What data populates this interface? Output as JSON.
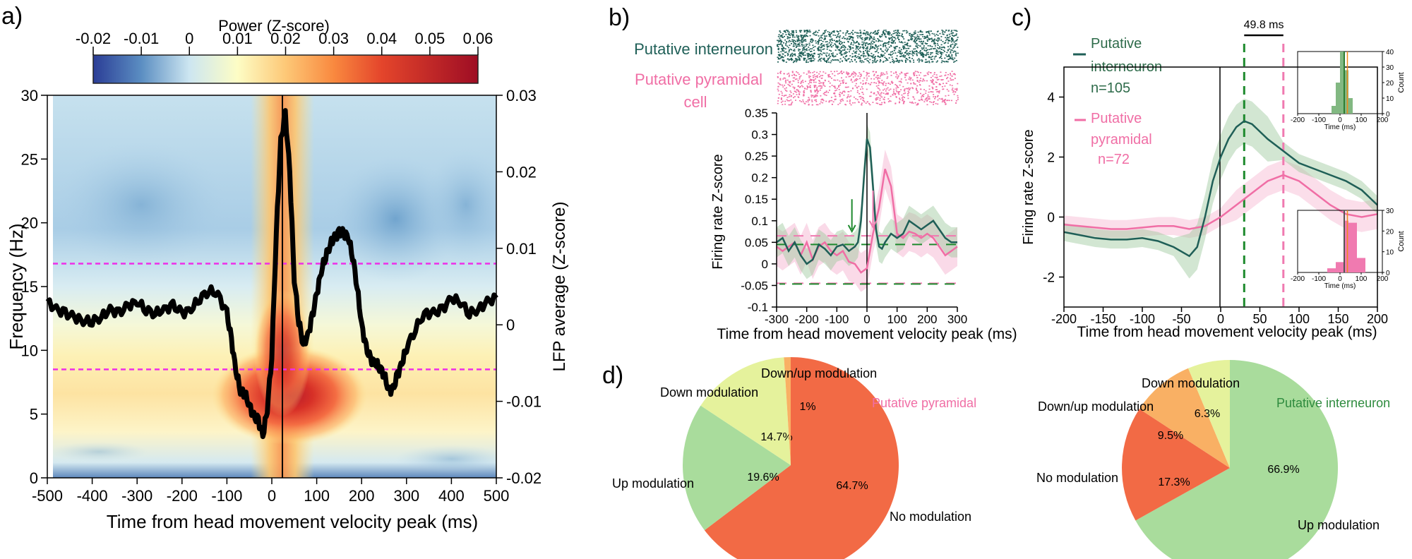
{
  "colors": {
    "interneuron": "#1f5f57",
    "pyramidal": "#f06ea5",
    "interneuron_fill": "#9cc79c",
    "pyramidal_fill": "#f7c2d8",
    "green_dash": "#1e8a2e",
    "pink_dash": "#f07ab0",
    "magenta": "#ee2ee8",
    "pie_no": "#f26a45",
    "pie_up": "#a9dc9c",
    "pie_down": "#e5f29c",
    "pie_downup": "#f9b064",
    "pie_pyr_label": "#f06ea5",
    "pie_int_label": "#2e8b3e"
  },
  "chart_data": [
    {
      "id": "a",
      "panel_label": "a)",
      "type": "heatmap",
      "title": "Power (Z-score)",
      "xlabel": "Time from head movement velocity peak (ms)",
      "ylabel": "Frequency (Hz)",
      "y2label": "LFP average (Z-score)",
      "xlim": [
        -500,
        500
      ],
      "ylim": [
        0,
        30
      ],
      "y2lim": [
        -0.02,
        0.03
      ],
      "x_ticks": [
        "-500",
        "-400",
        "-300",
        "-200",
        "-100",
        "0",
        "100",
        "200",
        "300",
        "400",
        "500"
      ],
      "y_ticks": [
        "0",
        "5",
        "10",
        "15",
        "20",
        "25",
        "30"
      ],
      "y2_ticks": [
        "-0.02",
        "-0.01",
        "0",
        "0.01",
        "0.02",
        "0.03"
      ],
      "colorbar_range": [
        -0.02,
        0.06
      ],
      "colorbar_ticks": [
        "-0.02",
        "-0.01",
        "0",
        "0.01",
        "0.02",
        "0.03",
        "0.04",
        "0.05",
        "0.06"
      ],
      "reference_lines_hz": [
        8.5,
        16.8
      ],
      "lfp_trace": {
        "x": [
          -500,
          -480,
          -460,
          -440,
          -420,
          -400,
          -380,
          -360,
          -340,
          -320,
          -300,
          -280,
          -260,
          -240,
          -220,
          -200,
          -180,
          -160,
          -140,
          -120,
          -100,
          -90,
          -80,
          -70,
          -60,
          -50,
          -40,
          -30,
          -20,
          -10,
          0,
          10,
          20,
          30,
          40,
          50,
          60,
          70,
          80,
          90,
          100,
          110,
          120,
          130,
          140,
          150,
          160,
          170,
          180,
          190,
          200,
          210,
          220,
          230,
          240,
          250,
          260,
          270,
          280,
          290,
          300,
          320,
          340,
          360,
          380,
          400,
          420,
          440,
          460,
          480,
          500
        ],
        "y": [
          0.003,
          0.002,
          0.0015,
          0.001,
          0.0005,
          0.0005,
          0.001,
          0.002,
          0.0015,
          0.0025,
          0.003,
          0.002,
          0.0015,
          0.002,
          0.0025,
          0.0015,
          0.002,
          0.0035,
          0.0045,
          0.004,
          0.0015,
          -0.002,
          -0.006,
          -0.0085,
          -0.009,
          -0.0105,
          -0.012,
          -0.0125,
          -0.0145,
          -0.011,
          -0.004,
          0.012,
          0.024,
          0.0275,
          0.02,
          0.006,
          0.0005,
          -0.0025,
          -0.0015,
          0.001,
          0.004,
          0.007,
          0.009,
          0.0105,
          0.0115,
          0.012,
          0.012,
          0.0115,
          0.009,
          0.005,
          0.0,
          -0.003,
          -0.0045,
          -0.005,
          -0.0055,
          -0.0065,
          -0.0085,
          -0.0085,
          -0.0065,
          -0.005,
          -0.003,
          -0.0005,
          0.0015,
          0.0015,
          0.002,
          0.0035,
          0.003,
          0.0015,
          0.002,
          0.003,
          0.0035
        ]
      }
    },
    {
      "id": "b",
      "panel_label": "b)",
      "type": "line",
      "raster_labels": [
        "Putative interneuron",
        "Putative pyramidal",
        "cell"
      ],
      "xlabel": "Time from head movement velocity peak (ms)",
      "ylabel": "Firing rate Z-score",
      "xlim": [
        -300,
        300
      ],
      "ylim": [
        -0.1,
        0.35
      ],
      "x_ticks": [
        "-300",
        "-200",
        "-100",
        "0",
        "100",
        "200",
        "300"
      ],
      "y_ticks": [
        "-0.1",
        "-0.05",
        "0",
        "0.05",
        "0.1",
        "0.15",
        "0.2",
        "0.25",
        "0.3",
        "0.35"
      ],
      "reference_levels": {
        "upper_pink": 0.065,
        "upper_green": 0.045,
        "lower": -0.045
      },
      "arrows_x": {
        "interneuron": -50,
        "pyramidal": 20
      },
      "series": [
        {
          "name": "Putative interneuron",
          "x": [
            -300,
            -280,
            -260,
            -240,
            -220,
            -200,
            -180,
            -160,
            -140,
            -120,
            -100,
            -80,
            -60,
            -40,
            -30,
            -20,
            -10,
            0,
            10,
            20,
            30,
            40,
            50,
            60,
            80,
            100,
            120,
            140,
            160,
            180,
            200,
            220,
            240,
            260,
            280,
            300
          ],
          "y": [
            0.05,
            0.06,
            0.03,
            0.05,
            0.02,
            0.0,
            0.01,
            0.045,
            0.035,
            0.02,
            0.04,
            0.045,
            0.03,
            0.04,
            0.05,
            0.1,
            0.2,
            0.29,
            0.27,
            0.18,
            0.08,
            0.04,
            0.035,
            0.05,
            0.07,
            0.06,
            0.07,
            0.1,
            0.09,
            0.08,
            0.09,
            0.1,
            0.08,
            0.06,
            0.05,
            0.05
          ]
        },
        {
          "name": "Putative pyramidal",
          "x": [
            -300,
            -280,
            -260,
            -240,
            -220,
            -200,
            -180,
            -160,
            -140,
            -120,
            -100,
            -80,
            -60,
            -40,
            -20,
            0,
            20,
            40,
            60,
            80,
            100,
            120,
            140,
            160,
            180,
            200,
            220,
            240,
            260,
            280,
            300
          ],
          "y": [
            0.04,
            0.03,
            0.04,
            0.05,
            0.02,
            0.05,
            0.01,
            0.04,
            0.05,
            0.03,
            0.02,
            0.03,
            0.005,
            0.0,
            -0.02,
            -0.01,
            0.07,
            0.13,
            0.22,
            0.18,
            0.07,
            0.06,
            0.075,
            0.07,
            0.06,
            0.07,
            0.06,
            0.04,
            0.02,
            0.03,
            0.04
          ]
        }
      ]
    },
    {
      "id": "c",
      "panel_label": "c)",
      "type": "line",
      "xlabel": "Time from head movement velocity peak (ms)",
      "ylabel": "Firing rate Z-score",
      "xlim": [
        -200,
        200
      ],
      "ylim": [
        -3,
        5
      ],
      "x_ticks": [
        "-200",
        "-150",
        "-100",
        "-50",
        "0",
        "50",
        "100",
        "150",
        "200"
      ],
      "y_ticks": [
        "-2",
        "0",
        "2",
        "4"
      ],
      "annotation": "49.8 ms",
      "dashed_lines_x": {
        "interneuron_peak": 30,
        "pyramidal_peak": 80
      },
      "series": [
        {
          "name": "Putative interneuron",
          "label_lines": [
            "Putative",
            "interneuron",
            "n=105"
          ],
          "x": [
            -200,
            -180,
            -160,
            -140,
            -120,
            -100,
            -80,
            -60,
            -40,
            -30,
            -20,
            -10,
            0,
            10,
            20,
            30,
            40,
            60,
            80,
            100,
            120,
            140,
            160,
            180,
            200
          ],
          "y": [
            -0.5,
            -0.6,
            -0.7,
            -0.75,
            -0.75,
            -0.7,
            -0.8,
            -1.0,
            -1.3,
            -1.0,
            0.0,
            1.2,
            2.0,
            2.6,
            3.0,
            3.2,
            3.1,
            2.6,
            2.2,
            1.8,
            1.6,
            1.4,
            1.2,
            0.9,
            0.4
          ]
        },
        {
          "name": "Putative pyramidal",
          "label_lines": [
            "Putative",
            "pyramidal",
            "n=72"
          ],
          "x": [
            -200,
            -180,
            -160,
            -140,
            -120,
            -100,
            -80,
            -60,
            -40,
            -20,
            0,
            20,
            40,
            60,
            80,
            100,
            120,
            140,
            160,
            180,
            200
          ],
          "y": [
            -0.25,
            -0.3,
            -0.35,
            -0.4,
            -0.4,
            -0.35,
            -0.3,
            -0.3,
            -0.4,
            -0.3,
            0.0,
            0.4,
            0.8,
            1.2,
            1.4,
            1.2,
            0.8,
            0.4,
            0.1,
            0.0,
            0.1
          ]
        }
      ],
      "insets": [
        {
          "type": "bar",
          "name": "interneuron histogram",
          "xlabel": "Time (ms)",
          "ylabel": "Count",
          "xlim": [
            -200,
            200
          ],
          "ylim": [
            0,
            40
          ],
          "x_ticks": [
            "-200",
            "-100",
            "0",
            "100",
            "200"
          ],
          "y_ticks": [
            "0",
            "10",
            "20",
            "30",
            "40"
          ],
          "bin_edges": [
            -40,
            -20,
            0,
            20,
            40,
            60
          ],
          "values": [
            5,
            20,
            40,
            28,
            10
          ]
        },
        {
          "type": "bar",
          "name": "pyramidal histogram",
          "xlabel": "Time (ms)",
          "ylabel": "Count",
          "xlim": [
            -200,
            200
          ],
          "ylim": [
            0,
            30
          ],
          "x_ticks": [
            "-200",
            "-100",
            "0",
            "100",
            "200"
          ],
          "y_ticks": [
            "0",
            "10",
            "20",
            "30"
          ],
          "bin_edges": [
            -60,
            -20,
            20,
            40,
            80,
            120
          ],
          "values": [
            2,
            5,
            25,
            24,
            7
          ]
        }
      ]
    },
    {
      "id": "d1",
      "panel_label": "d)",
      "type": "pie",
      "title": "Putative pyramidal",
      "labels": [
        "No modulation",
        "Up modulation",
        "Down modulation",
        "Down/up modulation"
      ],
      "values": [
        64.7,
        19.6,
        14.7,
        1.0
      ],
      "value_labels": [
        "64.7%",
        "19.6%",
        "14.7%",
        "1%"
      ]
    },
    {
      "id": "d2",
      "type": "pie",
      "title": "Putative interneuron",
      "labels": [
        "Up modulation",
        "No modulation",
        "Down/up modulation",
        "Down modulation"
      ],
      "values": [
        66.9,
        17.3,
        9.5,
        6.3
      ],
      "value_labels": [
        "66.9%",
        "17.3%",
        "9.5%",
        "6.3%"
      ]
    }
  ]
}
